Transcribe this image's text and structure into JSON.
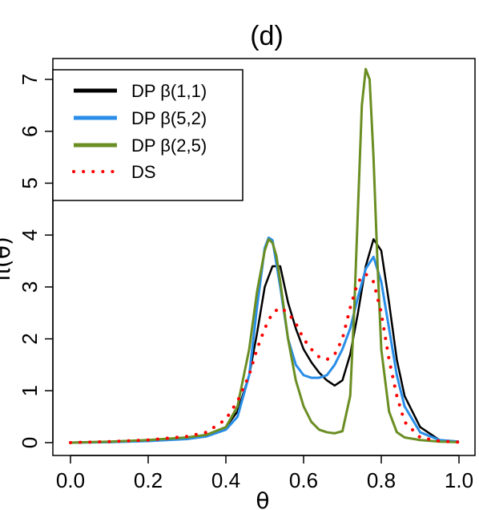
{
  "chart_data": {
    "type": "line",
    "title": "(d)",
    "xlabel": "θ",
    "ylabel": "π(θ)",
    "xlim": [
      0,
      1
    ],
    "ylim": [
      0,
      7
    ],
    "xticks": [
      "0.0",
      "0.2",
      "0.4",
      "0.6",
      "0.8",
      "1.0"
    ],
    "yticks": [
      "0",
      "1",
      "2",
      "3",
      "4",
      "5",
      "6",
      "7"
    ],
    "legend": {
      "position": "top-left"
    },
    "series": [
      {
        "name": "DP β(1,1)",
        "color": "#000000",
        "style": "solid",
        "x": [
          0,
          0.1,
          0.2,
          0.3,
          0.35,
          0.4,
          0.43,
          0.46,
          0.48,
          0.5,
          0.52,
          0.54,
          0.56,
          0.58,
          0.6,
          0.62,
          0.64,
          0.66,
          0.68,
          0.7,
          0.72,
          0.74,
          0.76,
          0.78,
          0.8,
          0.82,
          0.84,
          0.86,
          0.9,
          0.95,
          1.0
        ],
        "y": [
          0,
          0.01,
          0.03,
          0.08,
          0.15,
          0.3,
          0.6,
          1.3,
          2.1,
          3.0,
          3.4,
          3.4,
          2.7,
          2.2,
          1.8,
          1.55,
          1.35,
          1.2,
          1.1,
          1.2,
          1.7,
          2.5,
          3.4,
          3.92,
          3.7,
          2.7,
          1.6,
          0.9,
          0.3,
          0.05,
          0.02
        ]
      },
      {
        "name": "DP β(5,2)",
        "color": "#2a8ee8",
        "style": "solid",
        "x": [
          0,
          0.1,
          0.2,
          0.3,
          0.35,
          0.4,
          0.43,
          0.46,
          0.48,
          0.5,
          0.51,
          0.52,
          0.54,
          0.56,
          0.58,
          0.6,
          0.62,
          0.64,
          0.66,
          0.68,
          0.7,
          0.72,
          0.74,
          0.76,
          0.78,
          0.8,
          0.82,
          0.84,
          0.86,
          0.9,
          0.95,
          1.0
        ],
        "y": [
          0,
          0.01,
          0.03,
          0.07,
          0.12,
          0.25,
          0.5,
          1.3,
          2.6,
          3.75,
          3.95,
          3.9,
          3.0,
          2.0,
          1.5,
          1.3,
          1.25,
          1.25,
          1.3,
          1.5,
          1.8,
          2.2,
          2.8,
          3.35,
          3.58,
          3.1,
          2.2,
          1.3,
          0.7,
          0.2,
          0.05,
          0.02
        ]
      },
      {
        "name": "DP β(2,5)",
        "color": "#6b8e23",
        "style": "solid",
        "x": [
          0,
          0.1,
          0.2,
          0.3,
          0.35,
          0.4,
          0.43,
          0.46,
          0.48,
          0.5,
          0.51,
          0.52,
          0.53,
          0.54,
          0.56,
          0.58,
          0.6,
          0.62,
          0.64,
          0.66,
          0.68,
          0.7,
          0.72,
          0.73,
          0.74,
          0.75,
          0.76,
          0.77,
          0.78,
          0.79,
          0.8,
          0.82,
          0.84,
          0.86,
          0.9,
          0.95,
          1.0
        ],
        "y": [
          0,
          0.02,
          0.05,
          0.1,
          0.15,
          0.3,
          0.7,
          1.8,
          2.9,
          3.7,
          3.92,
          3.85,
          3.6,
          3.1,
          2.0,
          1.2,
          0.7,
          0.4,
          0.25,
          0.2,
          0.18,
          0.22,
          0.9,
          2.5,
          4.5,
          6.5,
          7.2,
          7.0,
          5.5,
          3.5,
          1.8,
          0.6,
          0.2,
          0.1,
          0.05,
          0.02,
          0.01
        ]
      },
      {
        "name": "DS",
        "color": "#ff0000",
        "style": "dotted",
        "x": [
          0,
          0.1,
          0.2,
          0.3,
          0.35,
          0.4,
          0.43,
          0.46,
          0.48,
          0.5,
          0.52,
          0.54,
          0.56,
          0.58,
          0.6,
          0.62,
          0.64,
          0.66,
          0.68,
          0.7,
          0.72,
          0.74,
          0.76,
          0.78,
          0.8,
          0.82,
          0.84,
          0.86,
          0.9,
          0.95,
          1.0
        ],
        "y": [
          0,
          0.02,
          0.05,
          0.12,
          0.2,
          0.45,
          0.8,
          1.3,
          1.8,
          2.2,
          2.5,
          2.6,
          2.5,
          2.3,
          2.0,
          1.8,
          1.65,
          1.6,
          1.7,
          2.0,
          2.6,
          3.1,
          3.25,
          3.1,
          2.5,
          1.6,
          0.9,
          0.4,
          0.1,
          0.03,
          0.01
        ]
      }
    ]
  }
}
